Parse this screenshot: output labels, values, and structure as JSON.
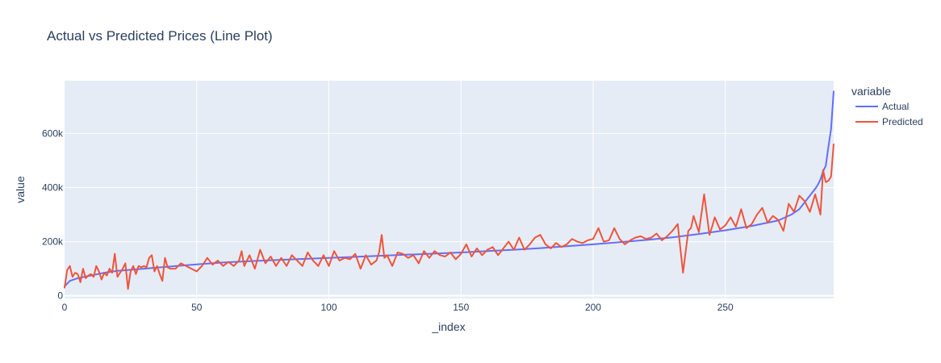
{
  "chart_data": {
    "type": "line",
    "title": "Actual vs Predicted Prices (Line Plot)",
    "xlabel": "_index",
    "ylabel": "value",
    "xlim": [
      0,
      291
    ],
    "ylim": [
      -10000,
      795000
    ],
    "x_ticks": [
      {
        "value": 0,
        "label": "0"
      },
      {
        "value": 50,
        "label": "50"
      },
      {
        "value": 100,
        "label": "100"
      },
      {
        "value": 150,
        "label": "150"
      },
      {
        "value": 200,
        "label": "200"
      },
      {
        "value": 250,
        "label": "250"
      }
    ],
    "y_ticks": [
      {
        "value": 0,
        "label": "0"
      },
      {
        "value": 200000,
        "label": "200k"
      },
      {
        "value": 400000,
        "label": "400k"
      },
      {
        "value": 600000,
        "label": "600k"
      }
    ],
    "legend": {
      "title": "variable",
      "placement": "right"
    },
    "grid": true,
    "series": [
      {
        "name": "Actual",
        "color": "#636efa",
        "x": [
          0,
          2,
          5,
          10,
          15,
          20,
          30,
          40,
          50,
          60,
          70,
          80,
          90,
          100,
          110,
          120,
          130,
          140,
          150,
          160,
          170,
          180,
          190,
          200,
          210,
          220,
          230,
          240,
          250,
          260,
          270,
          275,
          278,
          280,
          282,
          284,
          285,
          286,
          287,
          288,
          289,
          290,
          291
        ],
        "y": [
          35000,
          55000,
          65000,
          75000,
          85000,
          92000,
          100000,
          108000,
          116000,
          123000,
          128000,
          132000,
          136000,
          140000,
          144000,
          148000,
          152000,
          156000,
          160000,
          165000,
          170000,
          176000,
          183000,
          190000,
          198000,
          206000,
          216000,
          228000,
          242000,
          258000,
          278000,
          300000,
          320000,
          345000,
          370000,
          395000,
          410000,
          430000,
          460000,
          480000,
          550000,
          615000,
          755000
        ]
      },
      {
        "name": "Predicted",
        "color": "#ef553b",
        "x": [
          0,
          1,
          2,
          3,
          4,
          5,
          6,
          7,
          8,
          9,
          10,
          11,
          12,
          13,
          14,
          15,
          16,
          17,
          18,
          19,
          20,
          21,
          22,
          23,
          24,
          25,
          26,
          27,
          28,
          29,
          30,
          31,
          32,
          33,
          34,
          35,
          36,
          37,
          38,
          39,
          40,
          42,
          44,
          46,
          48,
          50,
          52,
          54,
          56,
          58,
          60,
          62,
          64,
          66,
          67,
          68,
          70,
          72,
          74,
          76,
          78,
          80,
          82,
          84,
          86,
          88,
          90,
          92,
          94,
          96,
          98,
          100,
          102,
          104,
          106,
          108,
          110,
          112,
          114,
          116,
          118,
          119,
          120,
          121,
          122,
          124,
          126,
          128,
          130,
          132,
          134,
          136,
          138,
          140,
          142,
          144,
          146,
          148,
          150,
          152,
          154,
          156,
          158,
          160,
          162,
          164,
          166,
          168,
          170,
          172,
          174,
          176,
          178,
          180,
          182,
          184,
          186,
          188,
          190,
          192,
          194,
          196,
          198,
          200,
          202,
          204,
          206,
          208,
          210,
          212,
          214,
          216,
          218,
          220,
          222,
          224,
          226,
          228,
          230,
          232,
          234,
          236,
          237,
          238,
          240,
          242,
          244,
          245,
          246,
          248,
          250,
          252,
          254,
          256,
          258,
          260,
          262,
          264,
          266,
          268,
          270,
          272,
          274,
          276,
          278,
          280,
          282,
          284,
          286,
          287,
          288,
          289,
          290,
          291
        ],
        "y": [
          30000,
          95000,
          110000,
          70000,
          85000,
          80000,
          50000,
          100000,
          65000,
          75000,
          80000,
          70000,
          110000,
          90000,
          60000,
          85000,
          75000,
          100000,
          85000,
          155000,
          70000,
          85000,
          100000,
          120000,
          25000,
          90000,
          110000,
          80000,
          110000,
          105000,
          110000,
          105000,
          140000,
          150000,
          90000,
          110000,
          80000,
          55000,
          140000,
          105000,
          100000,
          100000,
          120000,
          110000,
          100000,
          90000,
          110000,
          140000,
          115000,
          130000,
          110000,
          125000,
          110000,
          130000,
          165000,
          110000,
          150000,
          100000,
          170000,
          120000,
          145000,
          110000,
          140000,
          110000,
          150000,
          130000,
          110000,
          160000,
          130000,
          110000,
          150000,
          110000,
          165000,
          130000,
          140000,
          135000,
          155000,
          100000,
          150000,
          115000,
          130000,
          160000,
          225000,
          140000,
          150000,
          110000,
          160000,
          155000,
          140000,
          150000,
          120000,
          165000,
          140000,
          165000,
          150000,
          145000,
          160000,
          135000,
          155000,
          190000,
          145000,
          175000,
          150000,
          170000,
          180000,
          150000,
          175000,
          200000,
          170000,
          215000,
          170000,
          190000,
          215000,
          225000,
          190000,
          175000,
          195000,
          180000,
          190000,
          210000,
          200000,
          195000,
          205000,
          210000,
          250000,
          200000,
          205000,
          250000,
          210000,
          190000,
          205000,
          215000,
          220000,
          210000,
          215000,
          230000,
          205000,
          220000,
          240000,
          265000,
          85000,
          240000,
          250000,
          295000,
          235000,
          375000,
          225000,
          255000,
          290000,
          245000,
          260000,
          290000,
          255000,
          320000,
          250000,
          265000,
          300000,
          325000,
          270000,
          295000,
          280000,
          240000,
          340000,
          310000,
          370000,
          350000,
          310000,
          375000,
          300000,
          465000,
          420000,
          425000,
          440000,
          560000
        ]
      }
    ]
  }
}
